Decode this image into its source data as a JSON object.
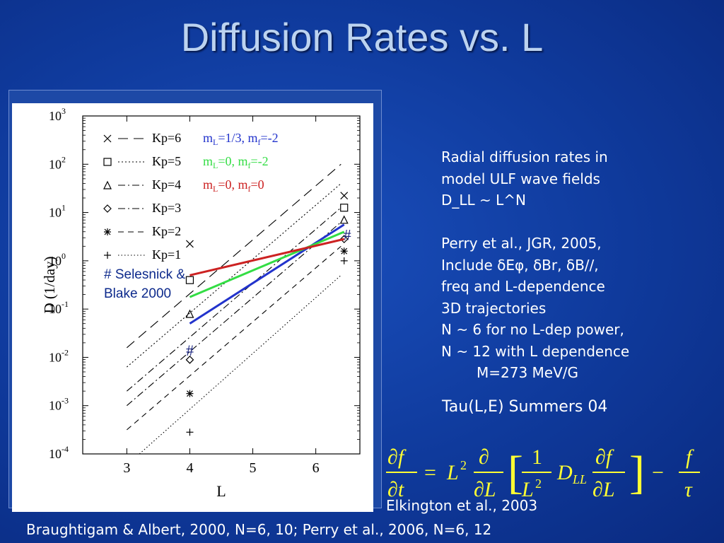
{
  "slide": {
    "title": "Diffusion Rates vs. L",
    "text_lines": [
      "Radial diffusion rates in",
      "model ULF wave fields",
      "D_LL ~ L^N",
      "",
      "Perry et al., JGR, 2005,",
      "Include δEφ, δBr, δB//,",
      "freq and L-dependence",
      "3D trajectories",
      "N ~ 6 for no L-dep power,",
      "N ~ 12 with L dependence",
      "M=273 MeV/G"
    ],
    "tau_note": "Tau(L,E) Summers 04",
    "citation_1": "Elkington et al., 2003",
    "citation_2": "Braughtigam & Albert, 2000, N=6, 10; Perry et al., 2006, N=6, 12",
    "equation": {
      "lhs": "∂f / ∂t = L² ∂/∂L [ 1/L² D_LL ∂f/∂L ] − f/τ"
    }
  },
  "chart_data": {
    "type": "scatter",
    "xlabel": "L",
    "ylabel": "D (1/day)",
    "xlim": [
      2.3,
      6.7
    ],
    "x_ticks": [
      3,
      4,
      5,
      6
    ],
    "x_tick_labels": [
      "3",
      "4",
      "5",
      "6"
    ],
    "ylim_log10": [
      -4,
      3
    ],
    "y_ticks_log10": [
      3,
      2,
      1,
      0,
      -1,
      -2,
      -3,
      -4
    ],
    "y_tick_labels": [
      "10^3",
      "10^2",
      "10^1",
      "10^0",
      "10^-1",
      "10^-2",
      "10^-3",
      "10^-4"
    ],
    "legend_kp": [
      {
        "label": "Kp=6",
        "marker": "x",
        "dash": "long-dash"
      },
      {
        "label": "Kp=5",
        "marker": "square",
        "dash": "dotted"
      },
      {
        "label": "Kp=4",
        "marker": "triangle",
        "dash": "dash-dot"
      },
      {
        "label": "Kp=3",
        "marker": "diamond",
        "dash": "dash-dot"
      },
      {
        "label": "Kp=2",
        "marker": "asterisk",
        "dash": "dashed"
      },
      {
        "label": "Kp=1",
        "marker": "plus",
        "dash": "fine-dotted"
      }
    ],
    "legend_models": [
      {
        "label_main": "m",
        "label_sub": "L",
        "label_rest": "=1/3, m",
        "label_sub2": "f",
        "label_end": "=-2",
        "color": "#2233cc"
      },
      {
        "label_main": "m",
        "label_sub": "L",
        "label_rest": "=0, m",
        "label_sub2": "f",
        "label_end": "=-2",
        "color": "#33dd44"
      },
      {
        "label_main": "m",
        "label_sub": "L",
        "label_rest": "=0, m",
        "label_sub2": "f",
        "label_end": "=0",
        "color": "#cc2222"
      }
    ],
    "kp_lines": [
      {
        "name": "Kp=6",
        "x": [
          3.0,
          6.4
        ],
        "log10_y": [
          -1.8,
          2.0
        ]
      },
      {
        "name": "Kp=5",
        "x": [
          3.0,
          6.4
        ],
        "log10_y": [
          -2.2,
          1.6
        ]
      },
      {
        "name": "Kp=4",
        "x": [
          3.0,
          6.4
        ],
        "log10_y": [
          -2.7,
          1.1
        ]
      },
      {
        "name": "Kp=3",
        "x": [
          3.0,
          6.4
        ],
        "log10_y": [
          -3.0,
          0.8
        ]
      },
      {
        "name": "Kp=2",
        "x": [
          3.0,
          6.4
        ],
        "log10_y": [
          -3.5,
          0.3
        ]
      },
      {
        "name": "Kp=1",
        "x": [
          3.2,
          6.4
        ],
        "log10_y": [
          -4.0,
          -0.3
        ]
      }
    ],
    "points": [
      {
        "name": "Kp=6",
        "marker": "x",
        "x": [
          4.0,
          6.45
        ],
        "log10_y": [
          0.35,
          1.35
        ]
      },
      {
        "name": "Kp=5",
        "marker": "square",
        "x": [
          4.0,
          6.45
        ],
        "log10_y": [
          -0.4,
          1.1
        ]
      },
      {
        "name": "Kp=4",
        "marker": "triangle",
        "x": [
          4.0,
          6.45
        ],
        "log10_y": [
          -1.1,
          0.85
        ]
      },
      {
        "name": "Kp=3",
        "marker": "diamond",
        "x": [
          4.0,
          6.45
        ],
        "log10_y": [
          -2.05,
          0.45
        ]
      },
      {
        "name": "Kp=2",
        "marker": "asterisk",
        "x": [
          4.0,
          6.45
        ],
        "log10_y": [
          -2.75,
          0.2
        ]
      },
      {
        "name": "Kp=1",
        "marker": "plus",
        "x": [
          4.0,
          6.45
        ],
        "log10_y": [
          -3.55,
          0.0
        ]
      }
    ],
    "model_lines": [
      {
        "name": "mL=1/3, mf=-2",
        "color": "#2233cc",
        "x": [
          4.0,
          6.45
        ],
        "log10_y": [
          -1.3,
          0.75
        ]
      },
      {
        "name": "mL=0, mf=-2",
        "color": "#33dd44",
        "x": [
          4.0,
          6.45
        ],
        "log10_y": [
          -0.75,
          0.6
        ]
      },
      {
        "name": "mL=0, mf=0",
        "color": "#cc2222",
        "x": [
          4.0,
          6.45
        ],
        "log10_y": [
          -0.3,
          0.45
        ]
      }
    ],
    "annotation": "# Selesnick &\nBlake 2000",
    "annotation_lines": [
      "# Selesnick &",
      "Blake 2000"
    ],
    "hash_marks": [
      {
        "x": 6.5,
        "log10_y": 0.55,
        "label": "#"
      },
      {
        "x": 4.0,
        "log10_y": -1.85,
        "label": "#"
      }
    ]
  }
}
